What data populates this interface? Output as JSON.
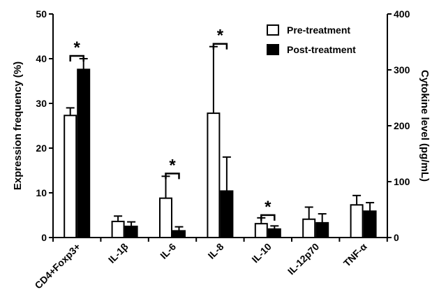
{
  "chart_data": {
    "type": "bar",
    "categories": [
      "CD4+Foxp3+",
      "IL-1β",
      "IL-6",
      "IL-8",
      "IL-10",
      "IL-12p70",
      "TNF-α"
    ],
    "series": [
      {
        "name": "Pre-treatment",
        "fill": "#ffffff",
        "values": [
          27.3,
          3.6,
          8.8,
          27.8,
          3.1,
          4.1,
          7.3
        ],
        "errors": [
          1.7,
          1.2,
          4.9,
          14.9,
          1.3,
          2.7,
          2.1
        ]
      },
      {
        "name": "Post-treatment",
        "fill": "#000000",
        "values": [
          37.6,
          2.5,
          1.5,
          10.4,
          1.9,
          3.3,
          5.9
        ],
        "errors": [
          2.4,
          1.0,
          0.9,
          7.6,
          0.7,
          2.0,
          1.9
        ]
      }
    ],
    "ylabel": "Expression frequency (%)",
    "ylim": [
      0,
      50
    ],
    "yticks": [
      0,
      10,
      20,
      30,
      40,
      50
    ],
    "y2label": "Cytokine level (pg/mL)",
    "y2lim": [
      0,
      400
    ],
    "y2ticks": [
      0,
      100,
      200,
      300,
      400
    ],
    "significance": [
      {
        "category": "CD4+Foxp3+",
        "label": "*"
      },
      {
        "category": "IL-6",
        "label": "*"
      },
      {
        "category": "IL-8",
        "label": "*"
      },
      {
        "category": "IL-10",
        "label": "*"
      }
    ],
    "legend_position": "top-right",
    "grid": false
  }
}
